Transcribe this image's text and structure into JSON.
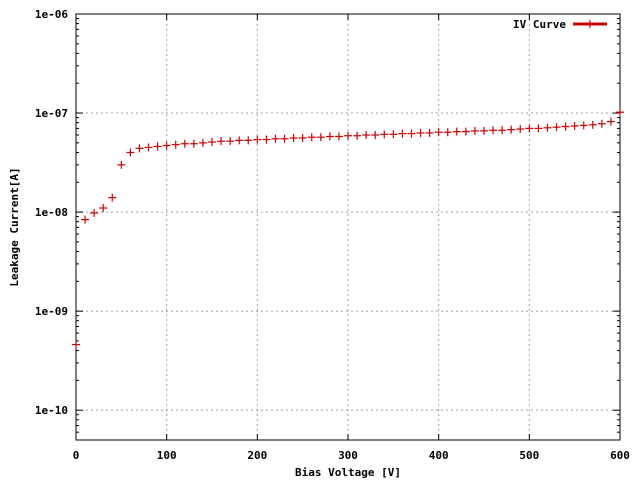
{
  "chart_data": {
    "type": "scatter",
    "title": "",
    "xlabel": "Bias Voltage [V]",
    "ylabel": "Leakage Current[A]",
    "xlim": [
      0,
      600
    ],
    "ylim": [
      5e-11,
      1e-06
    ],
    "yscale": "log",
    "grid": true,
    "legend_position": "top-right",
    "x_ticks": [
      "0",
      "100",
      "200",
      "300",
      "400",
      "500",
      "600"
    ],
    "y_ticks": [
      {
        "value": 1e-10,
        "label": "1e-10"
      },
      {
        "value": 1e-09,
        "label": "1e-09"
      },
      {
        "value": 1e-08,
        "label": "1e-08"
      },
      {
        "value": 1e-07,
        "label": "1e-07"
      },
      {
        "value": 1e-06,
        "label": "1e-06"
      }
    ],
    "series": [
      {
        "name": "IV Curve",
        "color": "#d00000",
        "x": [
          0,
          10,
          20,
          30,
          40,
          50,
          60,
          70,
          80,
          90,
          100,
          110,
          120,
          130,
          140,
          150,
          160,
          170,
          180,
          190,
          200,
          210,
          220,
          230,
          240,
          250,
          260,
          270,
          280,
          290,
          300,
          310,
          320,
          330,
          340,
          350,
          360,
          370,
          380,
          390,
          400,
          410,
          420,
          430,
          440,
          450,
          460,
          470,
          480,
          490,
          500,
          510,
          520,
          530,
          540,
          550,
          560,
          570,
          580,
          590,
          600
        ],
        "values": [
          4.6e-10,
          8.4e-09,
          9.8e-09,
          1.1e-08,
          1.4e-08,
          3e-08,
          4e-08,
          4.4e-08,
          4.5e-08,
          4.6e-08,
          4.7e-08,
          4.8e-08,
          4.9e-08,
          4.9e-08,
          5e-08,
          5.1e-08,
          5.2e-08,
          5.2e-08,
          5.3e-08,
          5.3e-08,
          5.4e-08,
          5.4e-08,
          5.5e-08,
          5.5e-08,
          5.6e-08,
          5.6e-08,
          5.7e-08,
          5.7e-08,
          5.8e-08,
          5.8e-08,
          5.9e-08,
          5.9e-08,
          6e-08,
          6e-08,
          6.1e-08,
          6.1e-08,
          6.2e-08,
          6.2e-08,
          6.3e-08,
          6.3e-08,
          6.4e-08,
          6.4e-08,
          6.5e-08,
          6.5e-08,
          6.6e-08,
          6.6e-08,
          6.7e-08,
          6.7e-08,
          6.8e-08,
          6.9e-08,
          7e-08,
          7e-08,
          7.1e-08,
          7.2e-08,
          7.3e-08,
          7.4e-08,
          7.5e-08,
          7.6e-08,
          7.8e-08,
          8.2e-08,
          1.02e-07
        ]
      }
    ]
  }
}
